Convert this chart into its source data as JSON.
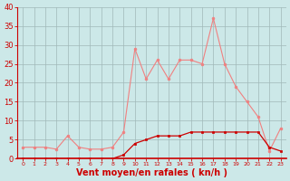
{
  "hours": [
    0,
    1,
    2,
    3,
    4,
    5,
    6,
    7,
    8,
    9,
    10,
    11,
    12,
    13,
    14,
    15,
    16,
    17,
    18,
    19,
    20,
    21,
    22,
    23
  ],
  "wind_gust": [
    3,
    3,
    3,
    2.5,
    6,
    3,
    2.5,
    2.5,
    3,
    7,
    29,
    21,
    26,
    21,
    26,
    26,
    25,
    37,
    25,
    19,
    15,
    11,
    2,
    8
  ],
  "wind_avg": [
    0,
    0,
    0,
    0,
    0,
    0,
    0,
    0,
    0,
    1,
    4,
    5,
    6,
    6,
    6,
    7,
    7,
    7,
    7,
    7,
    7,
    7,
    3,
    2
  ],
  "bg_color": "#cce8e8",
  "grid_color": "#a0b8b8",
  "line_color_gust": "#f08080",
  "line_color_avg": "#cc0000",
  "xlabel": "Vent moyen/en rafales ( kn/h )",
  "ylim": [
    0,
    40
  ],
  "yticks": [
    0,
    5,
    10,
    15,
    20,
    25,
    30,
    35,
    40
  ],
  "xlim": [
    -0.5,
    23.5
  ],
  "axis_color": "#cc0000",
  "tick_color": "#cc0000",
  "xlabel_color": "#cc0000",
  "xlabel_fontsize": 7,
  "ytick_fontsize": 6,
  "xtick_fontsize": 4.5
}
